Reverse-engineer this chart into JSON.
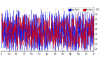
{
  "ylabel_right_values": [
    100,
    90,
    80,
    70,
    60,
    50,
    40,
    30,
    20
  ],
  "ylim": [
    15,
    105
  ],
  "background_color": "#ffffff",
  "grid_color": "#bbbbbb",
  "blue_color": "#0000dd",
  "red_color": "#dd0000",
  "legend_blue_label": "Dew Point",
  "legend_red_label": "Humidity",
  "num_days": 365,
  "month_names": [
    "Jul",
    "Aug",
    "Sep",
    "Oct",
    "Nov",
    "Dec",
    "Jan",
    "Feb",
    "Mar",
    "Apr",
    "May",
    "Jun",
    "Jul"
  ],
  "days_per_month": [
    31,
    28,
    31,
    30,
    31,
    30,
    31,
    31,
    30,
    31,
    30,
    31
  ]
}
